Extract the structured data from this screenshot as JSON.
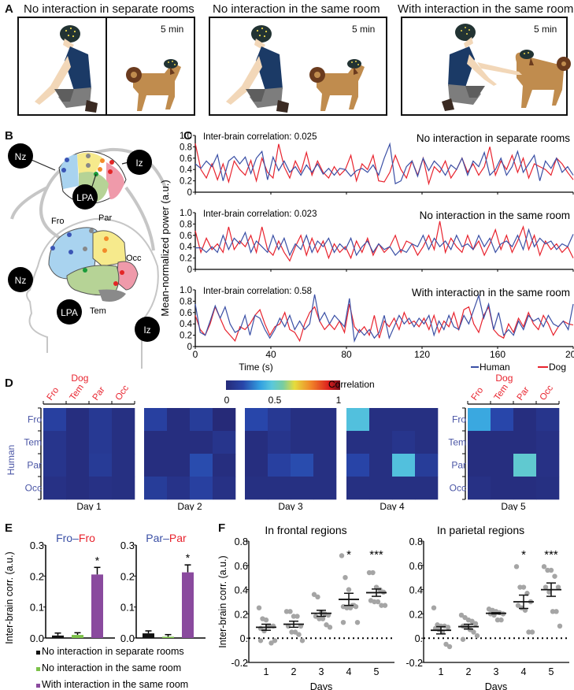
{
  "panels": {
    "A": {
      "label": "A",
      "conditions": [
        {
          "title": "No interaction in separate rooms",
          "duration": "5 min"
        },
        {
          "title": "No interaction in the same room",
          "duration": "5 min"
        },
        {
          "title": "With interaction in the same room",
          "duration": "5 min"
        }
      ]
    },
    "B": {
      "label": "B",
      "dog_landmarks": [
        "Nz",
        "Iz",
        "LPA"
      ],
      "human_landmarks": [
        "Nz",
        "Iz",
        "LPA"
      ],
      "human_regions": [
        "Fro",
        "Par",
        "Occ",
        "Tem"
      ],
      "region_colors": {
        "Fro": "#a9d3ef",
        "Par": "#f6ea8c",
        "Occ": "#ef9aaa",
        "Tem": "#b6d396",
        "cerebellum": "#8a8a8a"
      }
    },
    "C": {
      "label": "C"
    },
    "D": {
      "label": "D"
    },
    "E": {
      "label": "E"
    },
    "F": {
      "label": "F"
    }
  },
  "colors": {
    "human": "#3a4fa5",
    "dog": "#e8232e",
    "purple": "#8a4a9e",
    "green": "#7cc24a",
    "black": "#111111",
    "dots": "#a5a5a5"
  },
  "chart_data": [
    {
      "id": "C",
      "type": "line",
      "ylabel": "Mean-normalized power (a.u.)",
      "xlabel": "Time (s)",
      "xlim": [
        0,
        200
      ],
      "x_ticks": [
        "0",
        "40",
        "80",
        "120",
        "160",
        "200"
      ],
      "ylim": [
        0,
        1.0
      ],
      "y_ticks": [
        "0",
        "0.2",
        "0.4",
        "0.6",
        "0.8",
        "1.0"
      ],
      "legend": [
        "Human",
        "Dog"
      ],
      "legend_position": "bottom-right",
      "subplots": [
        {
          "title": "No interaction in separate rooms",
          "annotation": "Inter-brain correlation: 0.025",
          "human": [
            0.5,
            0.42,
            0.55,
            0.45,
            0.66,
            0.2,
            0.55,
            0.63,
            0.5,
            0.62,
            0.33,
            0.6,
            0.72,
            0.22,
            0.62,
            0.38,
            0.55,
            0.35,
            0.45,
            0.3,
            0.48,
            0.35,
            0.5,
            0.32,
            0.42,
            0.3,
            0.42,
            0.4,
            0.28,
            0.38,
            0.42,
            0.35,
            0.48,
            0.3,
            0.6,
            0.85,
            0.15,
            0.2,
            0.45,
            0.55,
            0.28,
            0.6,
            0.38,
            0.55,
            0.45,
            0.3,
            0.48,
            0.4,
            0.6,
            0.3,
            0.55,
            0.45,
            0.7,
            0.3,
            0.4,
            0.6,
            0.3,
            0.45,
            0.72,
            0.35,
            0.5,
            0.65,
            0.2,
            0.55,
            0.42,
            0.6,
            0.35,
            0.45,
            0.3
          ],
          "dog": [
            0.86,
            0.4,
            0.25,
            0.5,
            0.22,
            0.5,
            0.18,
            0.55,
            0.4,
            0.3,
            0.56,
            0.2,
            0.6,
            0.35,
            0.25,
            0.85,
            0.45,
            0.25,
            0.55,
            0.35,
            0.7,
            0.3,
            0.55,
            0.35,
            0.25,
            0.45,
            0.3,
            0.4,
            0.65,
            0.2,
            0.5,
            0.4,
            0.65,
            0.2,
            0.18,
            0.35,
            0.65,
            0.4,
            0.25,
            0.55,
            0.3,
            0.6,
            0.15,
            0.45,
            0.35,
            0.55,
            0.25,
            0.4,
            0.6,
            0.35,
            0.5,
            0.3,
            0.45,
            0.8,
            0.3,
            0.55,
            0.4,
            0.65,
            0.35,
            0.6,
            0.25,
            0.5,
            0.45,
            0.4,
            0.3,
            0.6,
            0.5,
            0.35,
            0.22
          ]
        },
        {
          "title": "No interaction in the same room",
          "annotation": "Inter-brain correlation: 0.023",
          "human": [
            0.38,
            0.38,
            0.3,
            0.4,
            0.3,
            0.6,
            0.35,
            0.55,
            0.45,
            0.65,
            0.3,
            0.5,
            0.4,
            0.3,
            0.6,
            0.35,
            0.55,
            0.25,
            0.45,
            0.35,
            0.6,
            0.3,
            0.5,
            0.4,
            0.55,
            0.3,
            0.45,
            0.35,
            0.55,
            0.25,
            0.4,
            0.5,
            0.3,
            0.45,
            0.35,
            0.4,
            0.25,
            0.35,
            0.3,
            0.45,
            0.4,
            0.6,
            0.35,
            0.55,
            0.4,
            0.5,
            0.35,
            0.6,
            0.4,
            0.45,
            0.35,
            0.6,
            0.4,
            0.55,
            0.3,
            0.45,
            0.5,
            0.4,
            0.6,
            0.35,
            0.7,
            0.4,
            0.55,
            0.45,
            0.5,
            0.35,
            0.45,
            0.4,
            0.62
          ],
          "dog": [
            0.68,
            0.3,
            0.55,
            0.35,
            0.45,
            0.3,
            0.75,
            0.35,
            0.5,
            0.4,
            0.6,
            0.3,
            0.75,
            0.35,
            0.25,
            0.5,
            0.3,
            0.15,
            0.4,
            0.6,
            0.25,
            0.55,
            0.3,
            0.5,
            0.2,
            0.45,
            0.3,
            0.4,
            0.2,
            0.5,
            0.3,
            0.55,
            0.25,
            0.45,
            0.3,
            0.4,
            0.6,
            0.3,
            0.5,
            0.45,
            0.25,
            0.4,
            0.6,
            0.35,
            0.85,
            0.3,
            0.55,
            0.4,
            0.3,
            0.6,
            0.35,
            0.5,
            0.25,
            0.45,
            0.7,
            0.35,
            0.6,
            0.3,
            0.5,
            0.75,
            0.35,
            0.6,
            0.25,
            0.5,
            0.35,
            0.45,
            0.3,
            0.4,
            0.2
          ]
        },
        {
          "title": "With interaction in the same room",
          "annotation": "Inter-brain correlation: 0.58",
          "human": [
            0.75,
            0.25,
            0.2,
            0.45,
            0.72,
            0.5,
            0.7,
            0.4,
            0.25,
            0.3,
            0.55,
            0.2,
            0.55,
            0.5,
            0.3,
            0.15,
            0.3,
            0.5,
            0.35,
            0.55,
            0.3,
            0.45,
            0.3,
            0.4,
            0.92,
            0.45,
            0.6,
            0.4,
            0.55,
            0.45,
            0.35,
            0.85,
            0.1,
            0.3,
            0.2,
            0.3,
            0.15,
            0.25,
            0.55,
            0.15,
            0.35,
            0.55,
            0.4,
            0.5,
            0.35,
            0.5,
            0.4,
            0.55,
            0.2,
            0.45,
            0.3,
            0.55,
            0.35,
            0.3,
            0.55,
            0.4,
            0.65,
            0.9,
            0.5,
            0.75,
            0.3,
            0.6,
            0.2,
            0.3,
            0.2,
            0.45,
            0.3,
            0.55,
            0.45,
            0.5,
            0.35,
            0.55,
            0.4,
            0.35,
            0.45,
            0.3,
            0.75
          ],
          "dog": [
            0.55,
            0.3,
            0.2,
            0.4,
            0.7,
            0.5,
            0.3,
            0.2,
            0.1,
            0.35,
            0.3,
            0.4,
            0.55,
            0.65,
            0.4,
            0.2,
            0.35,
            0.4,
            0.6,
            0.3,
            0.25,
            0.1,
            0.4,
            0.6,
            0.7,
            0.45,
            0.3,
            0.4,
            0.3,
            0.45,
            0.25,
            0.75,
            0.35,
            0.25,
            0.35,
            0.2,
            0.55,
            0.15,
            0.45,
            0.35,
            0.5,
            0.3,
            0.6,
            0.4,
            0.45,
            0.35,
            0.5,
            0.3,
            0.55,
            0.25,
            0.45,
            0.35,
            0.6,
            0.3,
            0.65,
            0.7,
            0.4,
            0.25,
            0.55,
            0.7,
            0.3,
            0.2,
            0.15,
            0.4,
            0.25,
            0.5,
            0.35,
            0.6,
            0.4,
            0.3,
            0.55,
            0.4,
            0.2,
            0.35,
            0.45,
            0.4,
            0.38
          ]
        }
      ]
    },
    {
      "id": "D",
      "type": "heatmap",
      "colorbar_label": "Correlation",
      "colorbar_ticks": [
        "0",
        "0.5",
        "1"
      ],
      "range": [
        0,
        1
      ],
      "x_title": "Dog",
      "y_title": "Human",
      "x_labels": [
        "Fro",
        "Tem",
        "Par",
        "Occ"
      ],
      "y_labels": [
        "Fro",
        "Tem",
        "Par",
        "Occ"
      ],
      "days": [
        {
          "label": "Day 1",
          "values": [
            [
              0.12,
              0.02,
              0.08,
              0.03
            ],
            [
              0.06,
              0.02,
              0.08,
              0.03
            ],
            [
              0.06,
              0.02,
              0.09,
              0.03
            ],
            [
              0.04,
              0.02,
              0.04,
              0.03
            ]
          ]
        },
        {
          "label": "Day 2",
          "values": [
            [
              0.12,
              0.02,
              0.1,
              0.0
            ],
            [
              0.02,
              0.02,
              0.02,
              0.06
            ],
            [
              0.02,
              0.02,
              0.16,
              0.02
            ],
            [
              0.1,
              0.05,
              0.12,
              0.04
            ]
          ]
        },
        {
          "label": "Day 3",
          "values": [
            [
              0.15,
              0.08,
              0.03,
              0.03
            ],
            [
              0.02,
              0.06,
              0.03,
              0.03
            ],
            [
              0.02,
              0.12,
              0.16,
              0.03
            ],
            [
              0.03,
              0.03,
              0.03,
              0.03
            ]
          ]
        },
        {
          "label": "Day 4",
          "values": [
            [
              0.38,
              0.03,
              0.03,
              0.03
            ],
            [
              0.03,
              0.03,
              0.06,
              0.03
            ],
            [
              0.14,
              0.03,
              0.38,
              0.1
            ],
            [
              0.03,
              0.03,
              0.03,
              0.03
            ]
          ]
        },
        {
          "label": "Day 5",
          "values": [
            [
              0.32,
              0.15,
              0.02,
              0.06
            ],
            [
              0.02,
              0.02,
              0.02,
              0.04
            ],
            [
              0.02,
              0.02,
              0.42,
              0.04
            ],
            [
              0.04,
              0.02,
              0.02,
              0.03
            ]
          ]
        }
      ]
    },
    {
      "id": "E",
      "type": "bar",
      "ylabel": "Inter-brain corr. (a.u.)",
      "ylim": [
        0,
        0.3
      ],
      "y_ticks": [
        "0.0",
        "0.1",
        "0.2",
        "0.3"
      ],
      "legend": [
        "No interaction in separate rooms",
        "No interaction in the same room",
        "With interaction in the same room"
      ],
      "legend_position": "bottom",
      "subplots": [
        {
          "title_left": "Fro",
          "title_sep": "–",
          "title_right": "Fro",
          "values": [
            0.008,
            0.01,
            0.205
          ],
          "errors": [
            0.008,
            0.007,
            0.023
          ],
          "significance": [
            "",
            "",
            "*"
          ]
        },
        {
          "title_left": "Par",
          "title_sep": "–",
          "title_right": "Par",
          "values": [
            0.015,
            0.004,
            0.212
          ],
          "errors": [
            0.008,
            0.007,
            0.024
          ],
          "significance": [
            "",
            "",
            "*"
          ]
        }
      ]
    },
    {
      "id": "F",
      "type": "scatter",
      "ylabel": "Inter-brain corr. (a.u.)",
      "xlabel": "Days",
      "categories": [
        "1",
        "2",
        "3",
        "4",
        "5"
      ],
      "ylim": [
        -0.2,
        0.8
      ],
      "y_ticks": [
        "-0.2",
        "0.",
        "0.2",
        "0.4",
        "0.6",
        "0.8"
      ],
      "reference_line": 0,
      "subplots": [
        {
          "title": "In frontal regions",
          "points": [
            [
              0.25,
              0.16,
              0.15,
              0.1,
              0.1,
              0.08,
              0.06,
              0.1,
              -0.04,
              -0.02,
              -0.02
            ],
            [
              0.22,
              0.22,
              0.18,
              0.18,
              0.1,
              0.1,
              0.05,
              0.05,
              0.03,
              -0.02
            ],
            [
              0.36,
              0.34,
              0.21,
              0.2,
              0.19,
              0.18,
              0.16,
              0.16,
              0.11,
              0.09
            ],
            [
              0.68,
              0.5,
              0.4,
              0.27,
              0.26,
              0.26,
              0.25,
              0.25,
              0.27,
              0.13,
              0.13
            ],
            [
              0.54,
              0.54,
              0.42,
              0.4,
              0.38,
              0.31,
              0.3,
              0.3,
              0.27,
              0.27
            ]
          ],
          "means": [
            0.09,
            0.115,
            0.205,
            0.32,
            0.375
          ],
          "sem": [
            0.025,
            0.025,
            0.025,
            0.05,
            0.03
          ],
          "significance": [
            "",
            "",
            "",
            "*",
            "***"
          ]
        },
        {
          "title": "In parietal regions",
          "points": [
            [
              0.25,
              0.11,
              0.1,
              0.1,
              0.09,
              0.08,
              0.07,
              0.05,
              -0.05,
              -0.07
            ],
            [
              0.19,
              0.17,
              0.15,
              0.14,
              0.12,
              0.1,
              0.09,
              0.07,
              0.05,
              0.02,
              -0.01
            ],
            [
              0.24,
              0.23,
              0.22,
              0.21,
              0.2,
              0.2,
              0.19,
              0.15,
              0.15
            ],
            [
              0.59,
              0.42,
              0.42,
              0.37,
              0.3,
              0.27,
              0.25,
              0.23,
              0.05,
              0.05
            ],
            [
              0.59,
              0.56,
              0.56,
              0.51,
              0.42,
              0.42,
              0.38,
              0.22,
              0.22,
              0.1
            ]
          ],
          "means": [
            0.065,
            0.095,
            0.205,
            0.3,
            0.4
          ],
          "sem": [
            0.03,
            0.02,
            0.005,
            0.055,
            0.055
          ],
          "significance": [
            "",
            "",
            "",
            "*",
            "***"
          ]
        }
      ]
    }
  ]
}
